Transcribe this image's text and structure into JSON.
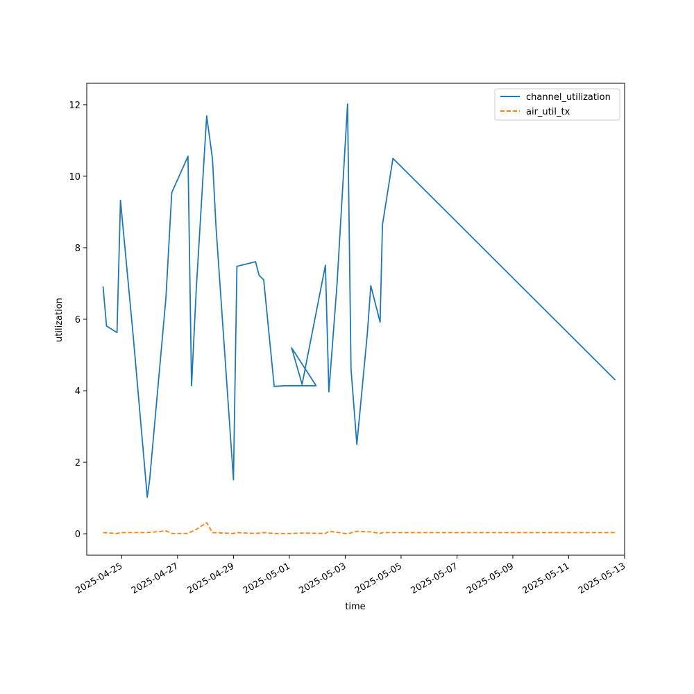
{
  "chart_data": {
    "type": "line",
    "title": "",
    "xlabel": "time",
    "ylabel": "utilization",
    "xlim": [
      "2025-04-23T18:00",
      "2025-05-13T00:00"
    ],
    "ylim": [
      -0.6,
      12.6
    ],
    "x_ticks": [
      "2025-04-25",
      "2025-04-27",
      "2025-04-29",
      "2025-05-01",
      "2025-05-03",
      "2025-05-05",
      "2025-05-07",
      "2025-05-09",
      "2025-05-11",
      "2025-05-13"
    ],
    "y_ticks": [
      0,
      2,
      4,
      6,
      8,
      10,
      12
    ],
    "y_tick_labels": [
      "0",
      "2",
      "4",
      "6",
      "8",
      "10",
      "12"
    ],
    "grid": false,
    "legend_position": "top-right",
    "series": [
      {
        "name": "channel_utilization",
        "color": "#1f77b4",
        "dash": "solid",
        "points": [
          [
            "2025-04-24T08:00",
            6.92
          ],
          [
            "2025-04-24T11:00",
            5.81
          ],
          [
            "2025-04-24T20:00",
            5.63
          ],
          [
            "2025-04-24T23:00",
            9.33
          ],
          [
            "2025-04-25T10:00",
            5.5
          ],
          [
            "2025-04-25T22:00",
            1.02
          ],
          [
            "2025-04-26T00:00",
            1.5
          ],
          [
            "2025-04-26T14:00",
            6.6
          ],
          [
            "2025-04-26T19:00",
            9.54
          ],
          [
            "2025-04-27T09:00",
            10.56
          ],
          [
            "2025-04-27T12:00",
            4.14
          ],
          [
            "2025-04-27T16:00",
            6.8
          ],
          [
            "2025-04-27T23:00",
            10.6
          ],
          [
            "2025-04-28T01:00",
            11.69
          ],
          [
            "2025-04-28T06:00",
            10.48
          ],
          [
            "2025-04-28T09:00",
            8.6
          ],
          [
            "2025-04-29T00:00",
            1.51
          ],
          [
            "2025-04-29T03:00",
            7.48
          ],
          [
            "2025-04-29T19:00",
            7.61
          ],
          [
            "2025-04-29T22:00",
            7.23
          ],
          [
            "2025-04-30T02:00",
            7.1
          ],
          [
            "2025-04-30T11:00",
            4.12
          ],
          [
            "2025-04-30T20:00",
            4.14
          ],
          [
            "2025-04-31T23:00",
            4.14
          ],
          [
            "2025-05-01T02:00",
            5.2
          ],
          [
            "2025-05-01T11:00",
            4.18
          ],
          [
            "2025-05-02T07:00",
            7.51
          ],
          [
            "2025-05-02T10:00",
            3.97
          ],
          [
            "2025-05-02T17:00",
            7.0
          ],
          [
            "2025-05-03T02:00",
            12.02
          ],
          [
            "2025-05-03T05:00",
            4.6
          ],
          [
            "2025-05-03T10:00",
            2.5
          ],
          [
            "2025-05-03T19:00",
            5.6
          ],
          [
            "2025-05-03T22:00",
            6.94
          ],
          [
            "2025-05-04T06:00",
            5.92
          ],
          [
            "2025-05-04T08:00",
            8.64
          ],
          [
            "2025-05-04T17:00",
            10.5
          ],
          [
            "2025-05-12T16:00",
            4.3
          ]
        ]
      },
      {
        "name": "air_util_tx",
        "color": "#ff7f0e",
        "dash": "dashed",
        "points": [
          [
            "2025-04-24T08:00",
            0.03
          ],
          [
            "2025-04-24T20:00",
            0.01
          ],
          [
            "2025-04-24T23:00",
            0.03
          ],
          [
            "2025-04-25T22:00",
            0.03
          ],
          [
            "2025-04-26T14:00",
            0.08
          ],
          [
            "2025-04-26T19:00",
            0.01
          ],
          [
            "2025-04-27T09:00",
            0.01
          ],
          [
            "2025-04-27T16:00",
            0.12
          ],
          [
            "2025-04-28T01:00",
            0.31
          ],
          [
            "2025-04-28T06:00",
            0.03
          ],
          [
            "2025-04-29T00:00",
            0.01
          ],
          [
            "2025-04-29T03:00",
            0.03
          ],
          [
            "2025-04-29T19:00",
            0.01
          ],
          [
            "2025-04-30T02:00",
            0.03
          ],
          [
            "2025-04-30T11:00",
            0.01
          ],
          [
            "2025-05-01T02:00",
            0.01
          ],
          [
            "2025-05-01T11:00",
            0.02
          ],
          [
            "2025-05-02T07:00",
            0.01
          ],
          [
            "2025-05-02T10:00",
            0.07
          ],
          [
            "2025-05-03T02:00",
            0.0
          ],
          [
            "2025-05-03T10:00",
            0.07
          ],
          [
            "2025-05-03T22:00",
            0.05
          ],
          [
            "2025-05-04T06:00",
            0.01
          ],
          [
            "2025-05-04T08:00",
            0.03
          ],
          [
            "2025-05-04T17:00",
            0.03
          ],
          [
            "2025-05-12T16:00",
            0.03
          ]
        ]
      }
    ]
  }
}
